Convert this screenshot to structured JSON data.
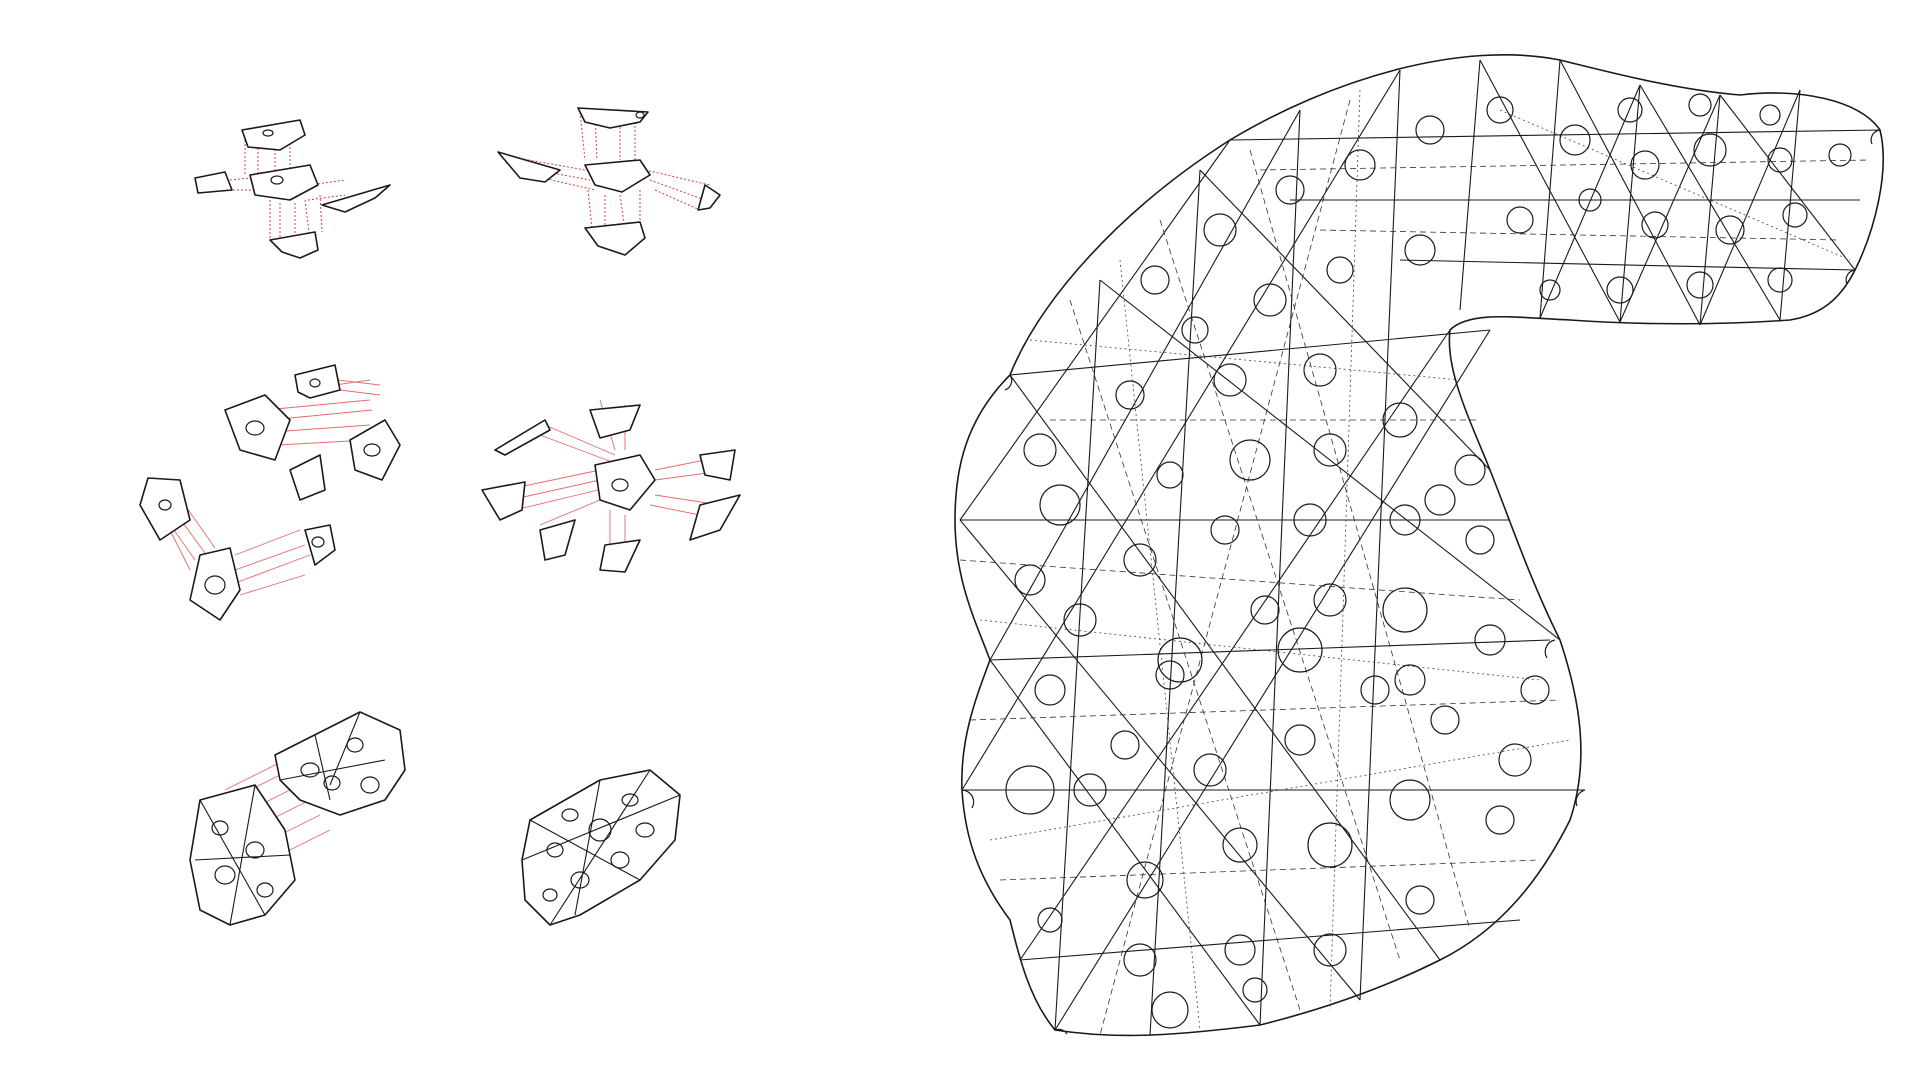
{
  "colors": {
    "background": "#ffffff",
    "line": "#1a1a1a",
    "assembly_guides": "#e23b3b"
  },
  "panels": [
    {
      "id": "step-1",
      "description_name": "three-module-exploded"
    },
    {
      "id": "step-2",
      "description_name": "four-module-exploded"
    },
    {
      "id": "step-3",
      "description_name": "chained-modules-exploded"
    },
    {
      "id": "step-4",
      "description_name": "cluster-exploded"
    },
    {
      "id": "step-5",
      "description_name": "panel-pair-exploded"
    },
    {
      "id": "step-6",
      "description_name": "panel-assembled"
    }
  ],
  "shell": {
    "description_name": "assembled-shell-wireframe"
  }
}
